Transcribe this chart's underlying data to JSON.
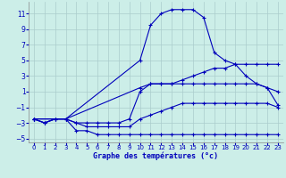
{
  "title": "Graphe des températures (°c)",
  "background_color": "#cceee8",
  "grid_color": "#aacccc",
  "line_color": "#0000bb",
  "xlim": [
    -0.5,
    23.5
  ],
  "ylim": [
    -5.5,
    12.5
  ],
  "xticks": [
    0,
    1,
    2,
    3,
    4,
    5,
    6,
    7,
    8,
    9,
    10,
    11,
    12,
    13,
    14,
    15,
    16,
    17,
    18,
    19,
    20,
    21,
    22,
    23
  ],
  "yticks": [
    -5,
    -3,
    -1,
    1,
    3,
    5,
    7,
    9,
    11
  ],
  "curves": [
    {
      "x": [
        0,
        1,
        2,
        3,
        4,
        5,
        6,
        7,
        8,
        9,
        10,
        11,
        12,
        13,
        14,
        15,
        16,
        17,
        18,
        19,
        20,
        21,
        22,
        23
      ],
      "y": [
        -2.5,
        -3,
        -2.5,
        -2.5,
        -4,
        -4,
        -4.5,
        -4.5,
        -4.5,
        -4.5,
        -4.5,
        -4.5,
        -4.5,
        -4.5,
        -4.5,
        -4.5,
        -4.5,
        -4.5,
        -4.5,
        -4.5,
        -4.5,
        -4.5,
        -4.5,
        -4.5
      ]
    },
    {
      "x": [
        0,
        1,
        2,
        3,
        4,
        5,
        6,
        7,
        8,
        9,
        10,
        11,
        12,
        13,
        14,
        15,
        16,
        17,
        18,
        19,
        20,
        21,
        22,
        23
      ],
      "y": [
        -2.5,
        -3,
        -2.5,
        -2.5,
        -3,
        -3.5,
        -3.5,
        -3.5,
        -3.5,
        -3.5,
        -2.5,
        -2,
        -1.5,
        -1,
        -0.5,
        -0.5,
        -0.5,
        -0.5,
        -0.5,
        -0.5,
        -0.5,
        -0.5,
        -0.5,
        -1
      ]
    },
    {
      "x": [
        0,
        1,
        2,
        3,
        4,
        5,
        6,
        7,
        8,
        9,
        10,
        11,
        12,
        13,
        14,
        15,
        16,
        17,
        18,
        19,
        20,
        21,
        22,
        23
      ],
      "y": [
        -2.5,
        -3,
        -2.5,
        -2.5,
        -3,
        -3,
        -3,
        -3,
        -3,
        -2.5,
        1,
        2,
        2,
        2,
        2,
        2,
        2,
        2,
        2,
        2,
        2,
        2,
        1.5,
        1
      ]
    },
    {
      "x": [
        0,
        3,
        10,
        11,
        12,
        13,
        14,
        15,
        16,
        17,
        18,
        19,
        20,
        21,
        22,
        23
      ],
      "y": [
        -2.5,
        -2.5,
        1.5,
        2,
        2,
        2,
        2.5,
        3,
        3.5,
        4,
        4,
        4.5,
        4.5,
        4.5,
        4.5,
        4.5
      ]
    },
    {
      "x": [
        0,
        3,
        10,
        11,
        12,
        13,
        14,
        15,
        16,
        17,
        18,
        19,
        20,
        21,
        22,
        23
      ],
      "y": [
        -2.5,
        -2.5,
        5,
        9.5,
        11,
        11.5,
        11.5,
        11.5,
        10.5,
        6,
        5,
        4.5,
        3,
        2,
        1.5,
        -0.7
      ]
    }
  ]
}
